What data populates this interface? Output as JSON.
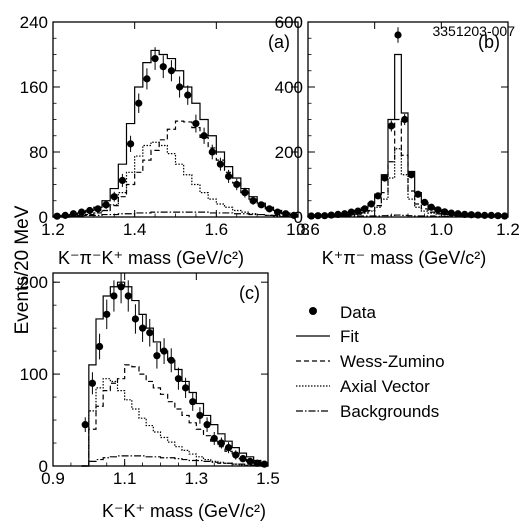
{
  "figure_id": "3351203-007",
  "ylabel": "Events/20 MeV",
  "legend": {
    "items": [
      {
        "key": "data",
        "label": "Data",
        "style": "marker"
      },
      {
        "key": "fit",
        "label": "Fit",
        "style": "solid"
      },
      {
        "key": "wz",
        "label": "Wess-Zumino",
        "style": "dashed"
      },
      {
        "key": "av",
        "label": "Axial Vector",
        "style": "dotted"
      },
      {
        "key": "bkg",
        "label": "Backgrounds",
        "style": "dashdot"
      }
    ]
  },
  "chart_data": [
    {
      "panel": "(a)",
      "type": "line",
      "xlabel": "K⁻π⁻K⁺ mass (GeV/c²)",
      "xlim": [
        1.2,
        1.8
      ],
      "ylim": [
        0,
        240
      ],
      "xticks": [
        1.2,
        1.4,
        1.6,
        1.8
      ],
      "yticks": [
        0,
        80,
        160,
        240
      ],
      "x": [
        1.21,
        1.23,
        1.25,
        1.27,
        1.29,
        1.31,
        1.33,
        1.35,
        1.37,
        1.39,
        1.41,
        1.43,
        1.45,
        1.47,
        1.49,
        1.51,
        1.53,
        1.55,
        1.57,
        1.59,
        1.61,
        1.63,
        1.65,
        1.67,
        1.69,
        1.71,
        1.73,
        1.75,
        1.77,
        1.79
      ],
      "series": [
        {
          "name": "Data",
          "style": "marker",
          "values": [
            1,
            2,
            4,
            6,
            8,
            10,
            15,
            25,
            45,
            90,
            140,
            170,
            195,
            185,
            180,
            160,
            150,
            115,
            100,
            80,
            65,
            50,
            40,
            30,
            20,
            15,
            10,
            6,
            4,
            2
          ],
          "errors": [
            3,
            3,
            3,
            4,
            4,
            4,
            5,
            6,
            8,
            10,
            12,
            13,
            14,
            14,
            13,
            13,
            12,
            11,
            10,
            9,
            8,
            8,
            7,
            6,
            5,
            4,
            4,
            3,
            3,
            2
          ]
        },
        {
          "name": "Fit",
          "style": "solid",
          "values": [
            1,
            2,
            3,
            5,
            8,
            12,
            20,
            35,
            65,
            115,
            160,
            190,
            205,
            200,
            195,
            180,
            160,
            140,
            120,
            100,
            80,
            62,
            48,
            35,
            25,
            17,
            12,
            8,
            5,
            3
          ]
        },
        {
          "name": "Wess-Zumino",
          "style": "dashed",
          "values": [
            0,
            0,
            1,
            2,
            3,
            5,
            8,
            14,
            25,
            40,
            55,
            70,
            82,
            95,
            108,
            118,
            117,
            110,
            98,
            85,
            70,
            55,
            42,
            30,
            22,
            15,
            10,
            6,
            4,
            2
          ]
        },
        {
          "name": "Axial Vector",
          "style": "dotted",
          "values": [
            0,
            0,
            1,
            2,
            3,
            5,
            8,
            15,
            30,
            55,
            75,
            88,
            92,
            88,
            78,
            65,
            52,
            40,
            30,
            22,
            16,
            12,
            8,
            6,
            4,
            3,
            2,
            1,
            1,
            0
          ]
        },
        {
          "name": "Backgrounds",
          "style": "dashdot",
          "values": [
            0,
            0,
            1,
            1,
            2,
            2,
            3,
            3,
            4,
            4,
            5,
            5,
            6,
            6,
            6,
            6,
            6,
            6,
            6,
            5,
            5,
            5,
            4,
            4,
            3,
            3,
            2,
            2,
            1,
            1
          ]
        }
      ]
    },
    {
      "panel": "(b)",
      "type": "line",
      "xlabel": "K⁺π⁻ mass (GeV/c²)",
      "xlim": [
        0.6,
        1.2
      ],
      "ylim": [
        0,
        600
      ],
      "xticks": [
        0.6,
        0.8,
        1.0,
        1.2
      ],
      "yticks": [
        0,
        200,
        400,
        600
      ],
      "x": [
        0.61,
        0.63,
        0.65,
        0.67,
        0.69,
        0.71,
        0.73,
        0.75,
        0.77,
        0.79,
        0.81,
        0.83,
        0.85,
        0.87,
        0.89,
        0.91,
        0.93,
        0.95,
        0.97,
        0.99,
        1.01,
        1.03,
        1.05,
        1.07,
        1.09,
        1.11,
        1.13,
        1.15,
        1.17,
        1.19
      ],
      "series": [
        {
          "name": "Data",
          "style": "marker",
          "values": [
            3,
            4,
            4,
            6,
            8,
            10,
            15,
            18,
            25,
            40,
            65,
            120,
            280,
            560,
            300,
            130,
            70,
            45,
            30,
            22,
            16,
            12,
            10,
            8,
            7,
            6,
            5,
            5,
            4,
            3
          ],
          "errors": [
            2,
            2,
            2,
            3,
            3,
            3,
            4,
            4,
            5,
            6,
            8,
            11,
            17,
            24,
            17,
            11,
            8,
            7,
            5,
            5,
            4,
            3,
            3,
            3,
            3,
            2,
            2,
            2,
            2,
            2
          ]
        },
        {
          "name": "Fit",
          "style": "solid",
          "values": [
            3,
            4,
            5,
            6,
            8,
            10,
            14,
            20,
            28,
            42,
            70,
            130,
            300,
            500,
            320,
            140,
            75,
            45,
            30,
            22,
            17,
            13,
            10,
            8,
            7,
            6,
            5,
            4,
            4,
            3
          ]
        },
        {
          "name": "Wess-Zumino",
          "style": "dashed",
          "values": [
            2,
            2,
            3,
            3,
            4,
            5,
            7,
            9,
            13,
            20,
            35,
            75,
            170,
            300,
            190,
            80,
            40,
            25,
            15,
            10,
            8,
            6,
            5,
            4,
            3,
            3,
            2,
            2,
            2,
            1
          ]
        },
        {
          "name": "Axial Vector",
          "style": "dotted",
          "values": [
            1,
            1,
            2,
            2,
            3,
            4,
            6,
            8,
            12,
            18,
            30,
            55,
            120,
            210,
            130,
            55,
            30,
            18,
            12,
            9,
            7,
            5,
            4,
            3,
            3,
            2,
            2,
            2,
            1,
            1
          ]
        },
        {
          "name": "Backgrounds",
          "style": "dashdot",
          "values": [
            2,
            2,
            2,
            2,
            2,
            2,
            3,
            3,
            3,
            3,
            3,
            4,
            5,
            6,
            5,
            4,
            3,
            3,
            3,
            2,
            2,
            2,
            2,
            2,
            2,
            2,
            1,
            1,
            1,
            1
          ]
        }
      ]
    },
    {
      "panel": "(c)",
      "type": "line",
      "xlabel": "K⁻K⁺ mass (GeV/c²)",
      "xlim": [
        0.9,
        1.5
      ],
      "ylim": [
        0,
        210
      ],
      "xticks": [
        0.9,
        1.1,
        1.3,
        1.5
      ],
      "xtick_labels": [
        "0.9",
        "1.1",
        "1.3",
        "1.5"
      ],
      "yticks": [
        0,
        100,
        200
      ],
      "x": [
        0.99,
        1.01,
        1.03,
        1.05,
        1.07,
        1.09,
        1.11,
        1.13,
        1.15,
        1.17,
        1.19,
        1.21,
        1.23,
        1.25,
        1.27,
        1.29,
        1.31,
        1.33,
        1.35,
        1.37,
        1.39,
        1.41,
        1.43,
        1.45,
        1.47,
        1.49
      ],
      "series": [
        {
          "name": "Data",
          "style": "marker",
          "values": [
            45,
            90,
            130,
            165,
            185,
            195,
            185,
            160,
            150,
            145,
            120,
            125,
            115,
            95,
            85,
            70,
            55,
            45,
            30,
            25,
            20,
            12,
            8,
            5,
            3,
            2
          ],
          "errors": [
            8,
            12,
            14,
            16,
            17,
            18,
            17,
            16,
            15,
            15,
            14,
            14,
            13,
            12,
            11,
            10,
            9,
            8,
            7,
            6,
            6,
            5,
            4,
            3,
            3,
            2
          ]
        },
        {
          "name": "Fit",
          "style": "solid",
          "values": [
            0,
            110,
            160,
            185,
            195,
            200,
            195,
            180,
            165,
            150,
            135,
            125,
            115,
            105,
            92,
            80,
            68,
            55,
            45,
            35,
            27,
            20,
            14,
            10,
            6,
            3
          ]
        },
        {
          "name": "Wess-Zumino",
          "style": "dashed",
          "values": [
            0,
            40,
            65,
            82,
            90,
            95,
            110,
            108,
            100,
            92,
            85,
            78,
            70,
            62,
            55,
            47,
            40,
            33,
            27,
            21,
            16,
            12,
            8,
            5,
            3,
            1
          ]
        },
        {
          "name": "Axial Vector",
          "style": "dotted",
          "values": [
            0,
            60,
            85,
            95,
            92,
            82,
            72,
            62,
            52,
            44,
            37,
            31,
            26,
            21,
            17,
            13,
            10,
            7,
            5,
            4,
            3,
            2,
            1,
            1,
            0,
            0
          ]
        },
        {
          "name": "Backgrounds",
          "style": "dashdot",
          "values": [
            0,
            5,
            7,
            9,
            10,
            11,
            11,
            11,
            11,
            10,
            10,
            9,
            9,
            8,
            7,
            6,
            6,
            5,
            4,
            3,
            3,
            2,
            2,
            1,
            1,
            0
          ]
        }
      ]
    }
  ]
}
